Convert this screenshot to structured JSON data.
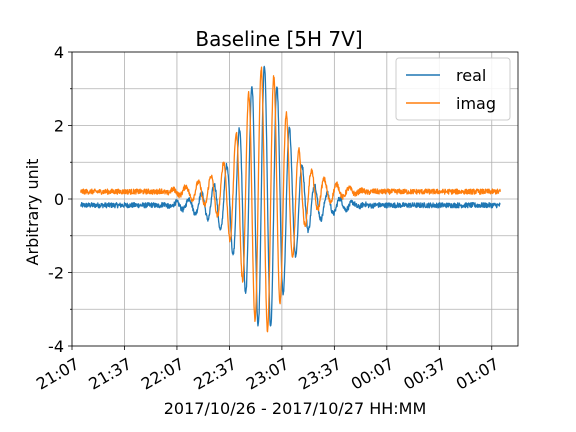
{
  "chart_data": {
    "type": "line",
    "title": "Baseline [5H 7V]",
    "xlabel": "2017/10/26 - 2017/10/27 HH:MM",
    "ylabel": "Arbitrary unit",
    "xlim": [
      "2017-10-26 21:07",
      "2017-10-27 01:22"
    ],
    "ylim": [
      -4,
      4
    ],
    "x_ticks": [
      "21:07",
      "21:37",
      "22:07",
      "22:37",
      "23:07",
      "23:37",
      "00:07",
      "00:37",
      "01:07"
    ],
    "y_ticks": [
      4,
      2,
      0,
      -2,
      -4
    ],
    "y_tick_labels": [
      "4",
      "2",
      "0",
      "-2",
      "-4"
    ],
    "grid": true,
    "legend_position": "upper-right",
    "data_range": [
      "2017-10-26 21:12",
      "2017-10-27 01:12"
    ],
    "fringe_center": "2017-10-26 22:57",
    "series": [
      {
        "name": "real",
        "color": "#1f77b4",
        "baseline": -0.17,
        "noise": 0.07,
        "peak_amplitude": 3.6
      },
      {
        "name": "imag",
        "color": "#ff7f0e",
        "baseline": 0.2,
        "noise": 0.07,
        "peak_amplitude": 3.6
      }
    ]
  }
}
